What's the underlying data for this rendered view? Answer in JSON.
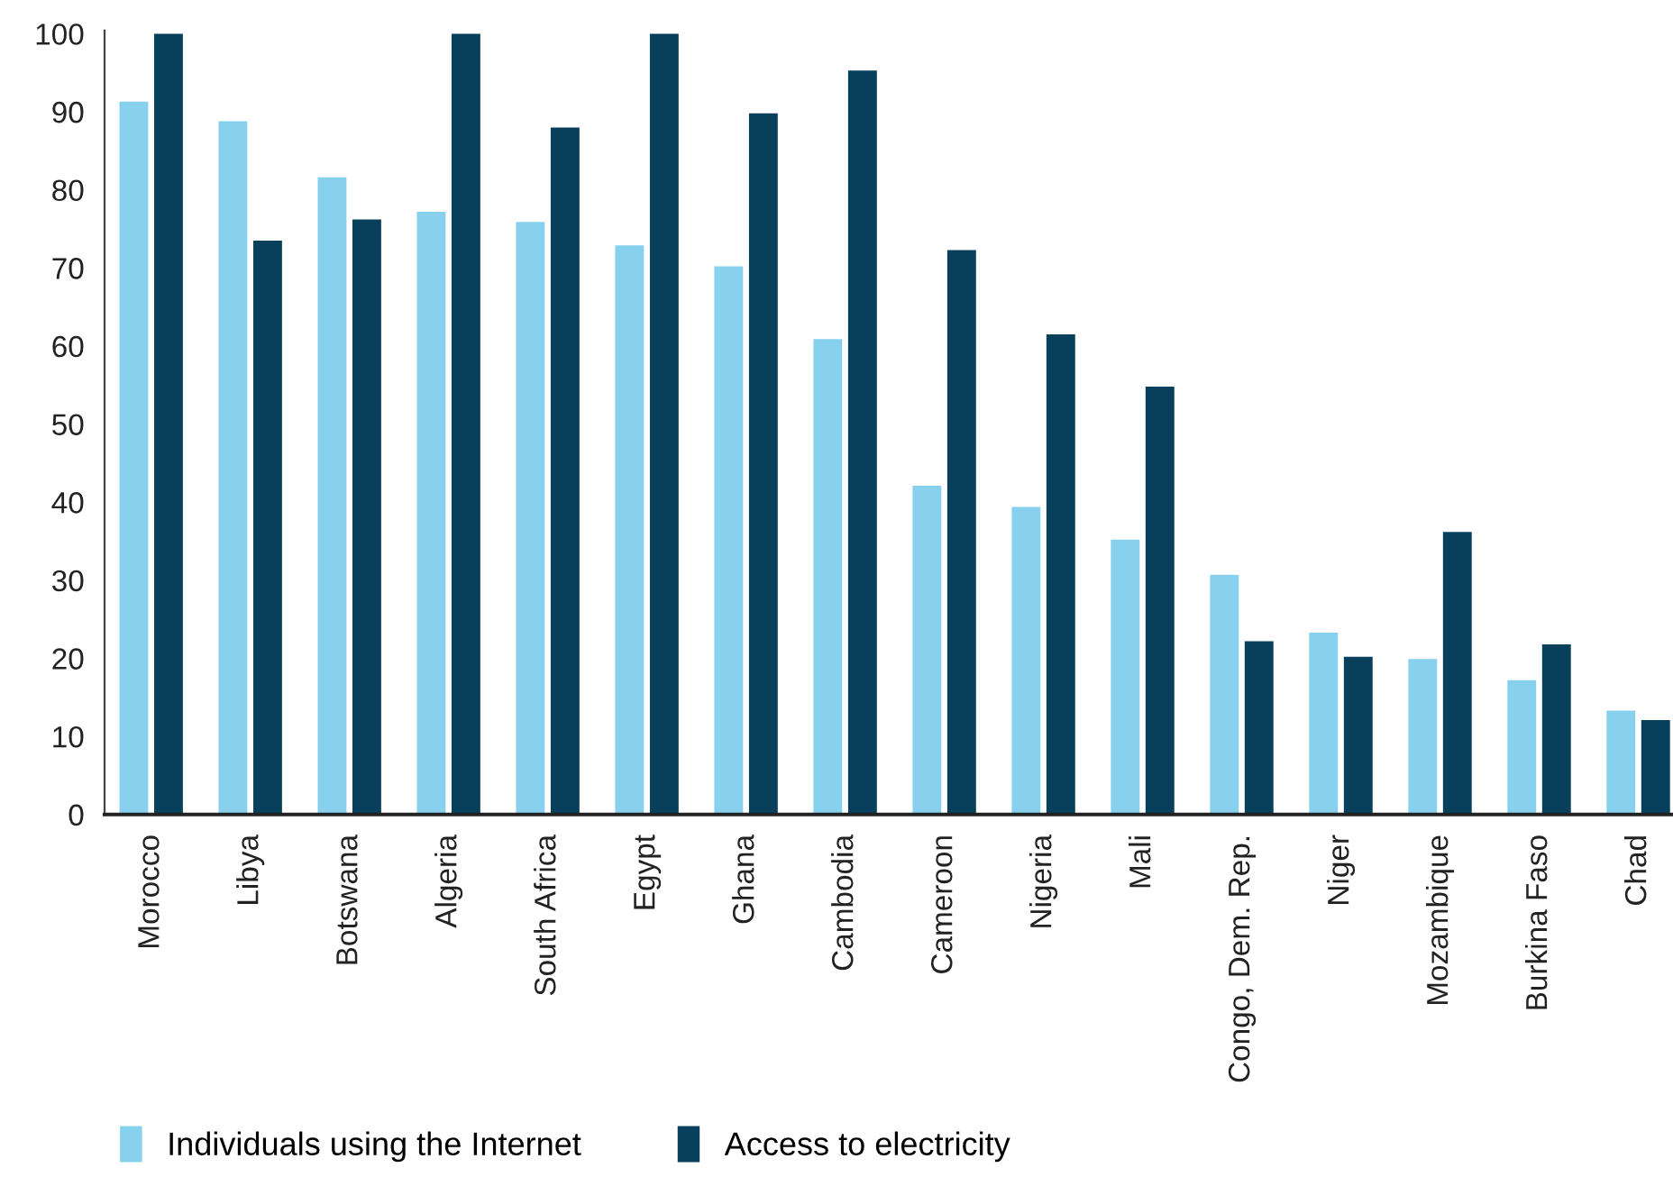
{
  "chart_data": {
    "type": "bar",
    "categories": [
      "Morocco",
      "Libya",
      "Botswana",
      "Algeria",
      "South Africa",
      "Egypt",
      "Ghana",
      "Cambodia",
      "Cameroon",
      "Nigeria",
      "Mali",
      "Congo, Dem. Rep.",
      "Niger",
      "Mozambique",
      "Burkina Faso",
      "Chad"
    ],
    "series": [
      {
        "name": "Individuals using the Internet",
        "color": "#87d1ee",
        "values": [
          91.3,
          88.8,
          81.6,
          77.2,
          75.9,
          72.9,
          70.2,
          60.9,
          42.1,
          39.4,
          35.2,
          30.7,
          23.3,
          19.9,
          17.2,
          13.3
        ]
      },
      {
        "name": "Access to electricity",
        "color": "#08405c",
        "values": [
          100,
          73.5,
          76.2,
          100,
          88.0,
          100,
          89.8,
          95.3,
          72.3,
          61.5,
          54.8,
          22.2,
          20.2,
          36.2,
          21.8,
          12.1
        ]
      }
    ],
    "ylim": [
      0,
      100.4
    ],
    "yticks": [
      0,
      10,
      20,
      30,
      40,
      50,
      60,
      70,
      80,
      90,
      100
    ],
    "grid": false,
    "legend": "bottom left"
  }
}
